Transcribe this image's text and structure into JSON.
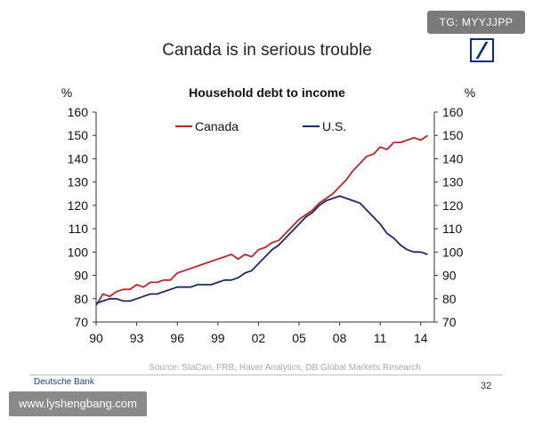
{
  "slide": {
    "title": "Canada is in serious trouble",
    "footer_left": "Deutsche Bank",
    "page_number": "32",
    "watermark_top": "TG: MYYJJPP",
    "watermark_bottom": "www.lyshengbang.com"
  },
  "colors": {
    "canada": "#c0242a",
    "us": "#1a2a6b",
    "logo": "#0a2a8a"
  },
  "chart_data": {
    "type": "line",
    "title": "Household debt to income",
    "ylabel_left": "%",
    "ylabel_right": "%",
    "source": "Source: StaCan, FRB, Haver Analytics, DB Global Markets Research",
    "ylim": [
      70,
      160
    ],
    "yticks": [
      "160",
      "150",
      "140",
      "130",
      "120",
      "110",
      "100",
      "90",
      "80",
      "70"
    ],
    "xlim": [
      1990,
      2015
    ],
    "xticks": [
      "90",
      "93",
      "96",
      "99",
      "02",
      "05",
      "08",
      "11",
      "14"
    ],
    "grid": false,
    "legend_position": "top",
    "series": [
      {
        "name": "Canada",
        "x": [
          1990,
          1990.5,
          1991,
          1991.5,
          1992,
          1992.5,
          1993,
          1993.5,
          1994,
          1994.5,
          1995,
          1995.5,
          1996,
          1996.5,
          1997,
          1997.5,
          1998,
          1998.5,
          1999,
          1999.5,
          2000,
          2000.5,
          2001,
          2001.5,
          2002,
          2002.5,
          2003,
          2003.5,
          2004,
          2004.5,
          2005,
          2005.5,
          2006,
          2006.5,
          2007,
          2007.5,
          2008,
          2008.5,
          2009,
          2009.5,
          2010,
          2010.5,
          2011,
          2011.5,
          2012,
          2012.5,
          2013,
          2013.5,
          2014,
          2014.5
        ],
        "y": [
          77,
          82,
          81,
          83,
          84,
          84,
          86,
          85,
          87,
          87,
          88,
          88,
          91,
          92,
          93,
          94,
          95,
          96,
          97,
          98,
          99,
          97,
          99,
          98,
          101,
          102,
          104,
          105,
          108,
          111,
          114,
          116,
          118,
          121,
          123,
          125,
          128,
          131,
          135,
          138,
          141,
          142,
          145,
          144,
          147,
          147,
          148,
          149,
          148,
          150
        ]
      },
      {
        "name": "U.S.",
        "x": [
          1990,
          1990.5,
          1991,
          1991.5,
          1992,
          1992.5,
          1993,
          1993.5,
          1994,
          1994.5,
          1995,
          1995.5,
          1996,
          1996.5,
          1997,
          1997.5,
          1998,
          1998.5,
          1999,
          1999.5,
          2000,
          2000.5,
          2001,
          2001.5,
          2002,
          2002.5,
          2003,
          2003.5,
          2004,
          2004.5,
          2005,
          2005.5,
          2006,
          2006.5,
          2007,
          2007.5,
          2008,
          2008.5,
          2009,
          2009.5,
          2010,
          2010.5,
          2011,
          2011.5,
          2012,
          2012.5,
          2013,
          2013.5,
          2014,
          2014.5
        ],
        "y": [
          78,
          79,
          80,
          80,
          79,
          79,
          80,
          81,
          82,
          82,
          83,
          84,
          85,
          85,
          85,
          86,
          86,
          86,
          87,
          88,
          88,
          89,
          91,
          92,
          95,
          98,
          101,
          103,
          106,
          109,
          112,
          115,
          117,
          120,
          122,
          123,
          124,
          123,
          122,
          121,
          118,
          115,
          112,
          108,
          106,
          103,
          101,
          100,
          100,
          99
        ]
      }
    ]
  }
}
